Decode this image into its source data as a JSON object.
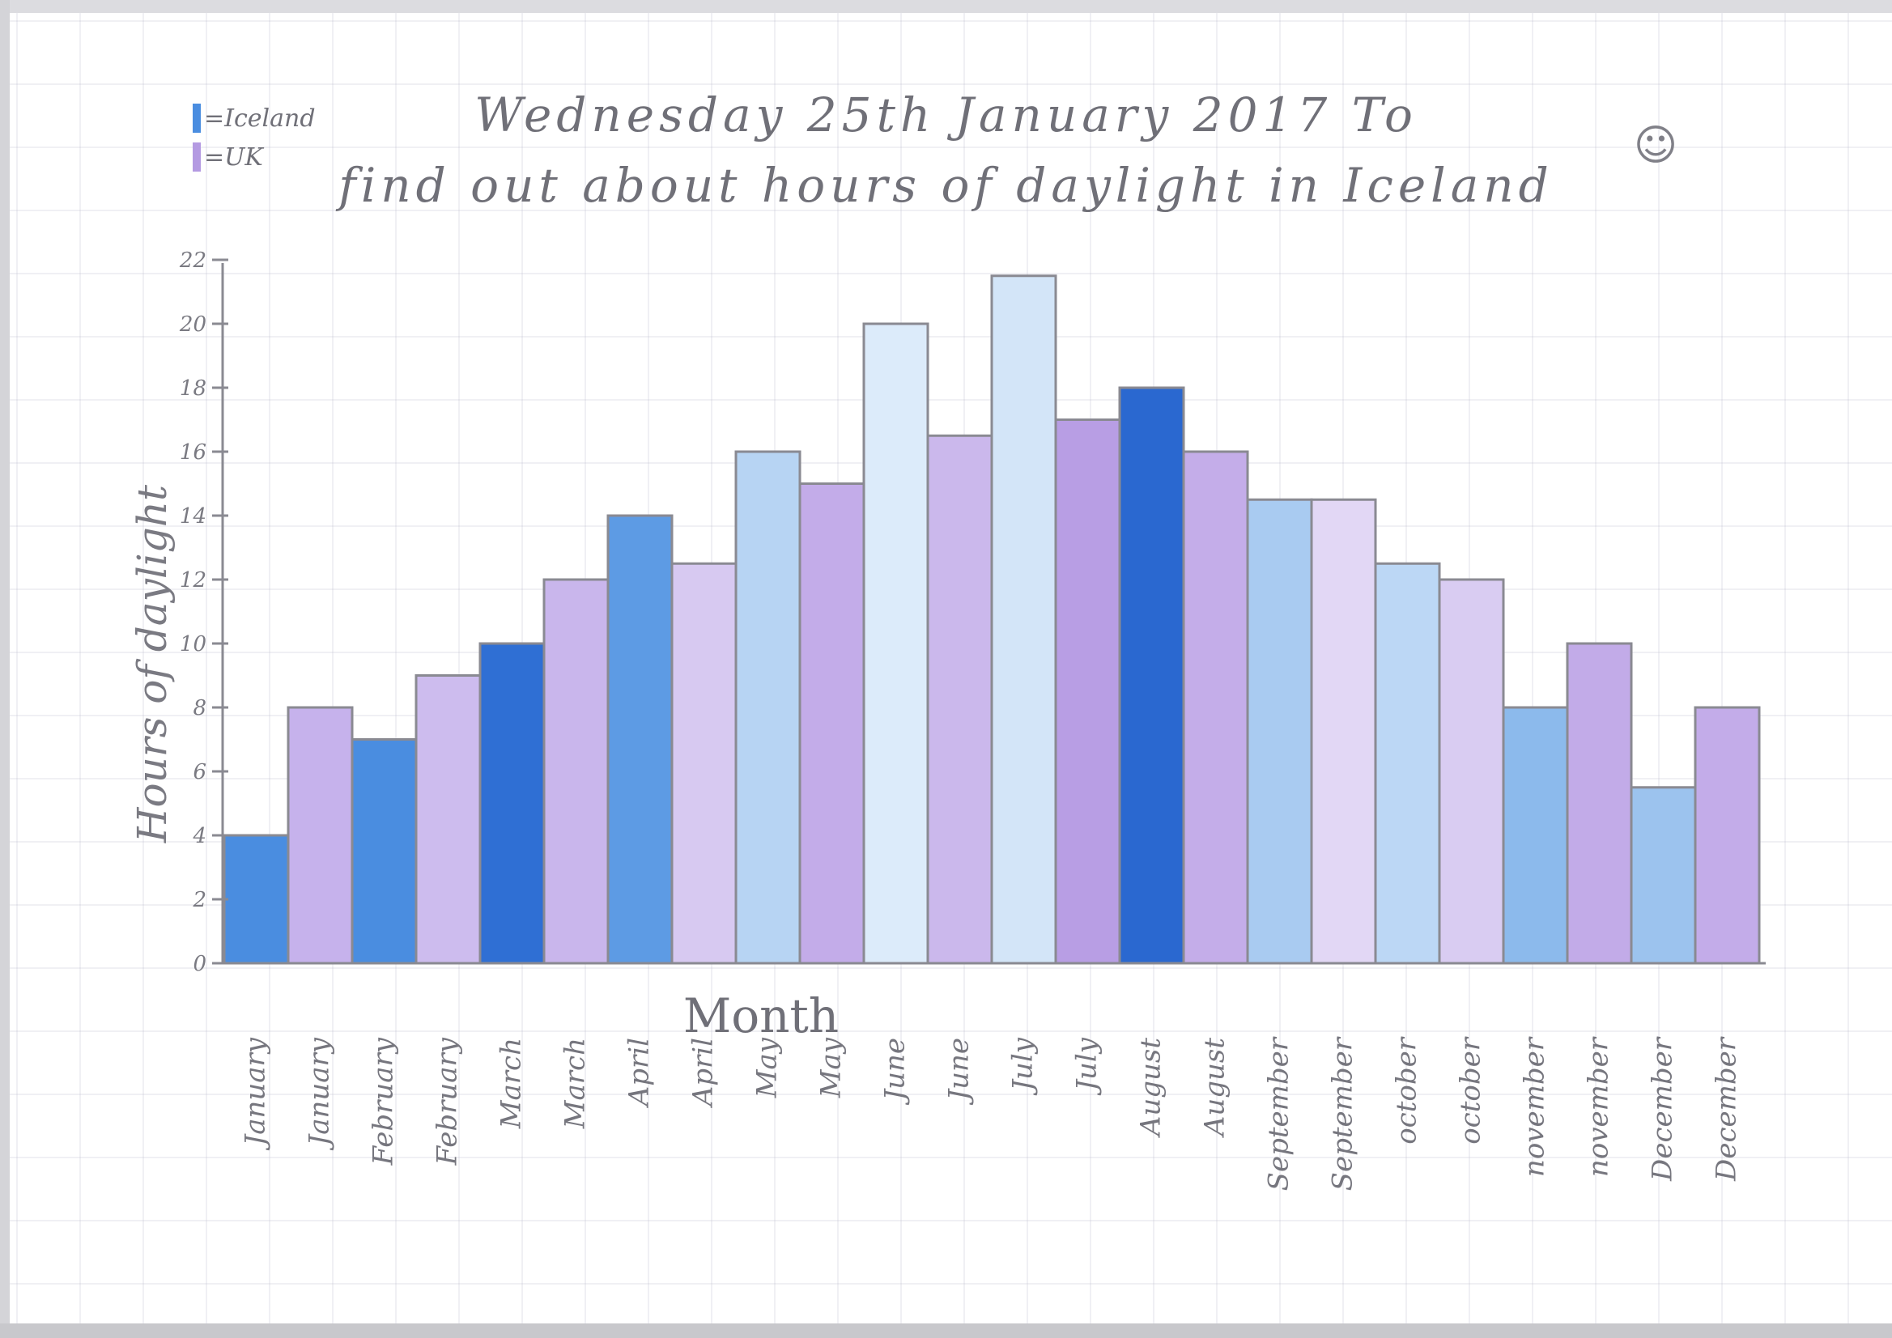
{
  "page": {
    "title_line1": "Wednesday 25th January 2017 To",
    "title_line2": "find out about hours of daylight in Iceland",
    "smiley": "☺"
  },
  "legend": [
    {
      "label": "=Iceland",
      "color": "#4a8de0"
    },
    {
      "label": "=UK",
      "color": "#b49ae2"
    }
  ],
  "chart_data": {
    "type": "bar",
    "title": "Wednesday 25th January 2017 To find out about hours of daylight in Iceland",
    "xlabel": "Month",
    "ylabel": "Hours of daylight",
    "ylim": [
      0,
      22
    ],
    "yticks": [
      0,
      2,
      4,
      6,
      8,
      10,
      12,
      14,
      16,
      18,
      20,
      22
    ],
    "legend_position": "top-left",
    "grid": true,
    "categories": [
      "January",
      "January",
      "February",
      "February",
      "March",
      "March",
      "April",
      "April",
      "May",
      "May",
      "June",
      "June",
      "July",
      "July",
      "August",
      "August",
      "September",
      "September",
      "october",
      "october",
      "november",
      "november",
      "December",
      "December"
    ],
    "series": [
      {
        "name": "Iceland",
        "color": "#4a8de0"
      },
      {
        "name": "UK",
        "color": "#b49ae2"
      }
    ],
    "bars": [
      {
        "category": "January",
        "series": "Iceland",
        "value": 4,
        "fill": "#4a8de0"
      },
      {
        "category": "January",
        "series": "UK",
        "value": 8,
        "fill": "#c6b2ec"
      },
      {
        "category": "February",
        "series": "Iceland",
        "value": 7,
        "fill": "#4a8de0"
      },
      {
        "category": "February",
        "series": "UK",
        "value": 9,
        "fill": "#cdbcee"
      },
      {
        "category": "March",
        "series": "Iceland",
        "value": 10,
        "fill": "#2f6fd4"
      },
      {
        "category": "March",
        "series": "UK",
        "value": 12,
        "fill": "#c9b6ec"
      },
      {
        "category": "April",
        "series": "Iceland",
        "value": 14,
        "fill": "#5d9be4"
      },
      {
        "category": "April",
        "series": "UK",
        "value": 12.5,
        "fill": "#d7c9f1"
      },
      {
        "category": "May",
        "series": "Iceland",
        "value": 16,
        "fill": "#b7d4f3"
      },
      {
        "category": "May",
        "series": "UK",
        "value": 15,
        "fill": "#c3ace9"
      },
      {
        "category": "June",
        "series": "Iceland",
        "value": 20,
        "fill": "#dcebfa"
      },
      {
        "category": "June",
        "series": "UK",
        "value": 16.5,
        "fill": "#cbb8ec"
      },
      {
        "category": "July",
        "series": "Iceland",
        "value": 21.5,
        "fill": "#d3e5f8"
      },
      {
        "category": "July",
        "series": "UK",
        "value": 17,
        "fill": "#b89ee4"
      },
      {
        "category": "August",
        "series": "Iceland",
        "value": 18,
        "fill": "#2a68d0"
      },
      {
        "category": "August",
        "series": "UK",
        "value": 16,
        "fill": "#c4ade9"
      },
      {
        "category": "September",
        "series": "Iceland",
        "value": 14.5,
        "fill": "#a9cbf1"
      },
      {
        "category": "September",
        "series": "UK",
        "value": 14.5,
        "fill": "#e2d7f5"
      },
      {
        "category": "october",
        "series": "Iceland",
        "value": 12.5,
        "fill": "#bcd7f5"
      },
      {
        "category": "october",
        "series": "UK",
        "value": 12,
        "fill": "#d9ccf2"
      },
      {
        "category": "november",
        "series": "Iceland",
        "value": 8,
        "fill": "#8cbaec"
      },
      {
        "category": "november",
        "series": "UK",
        "value": 10,
        "fill": "#c2abe8"
      },
      {
        "category": "December",
        "series": "Iceland",
        "value": 5.5,
        "fill": "#9cc3ee"
      },
      {
        "category": "December",
        "series": "UK",
        "value": 8,
        "fill": "#c3ace9"
      }
    ]
  }
}
